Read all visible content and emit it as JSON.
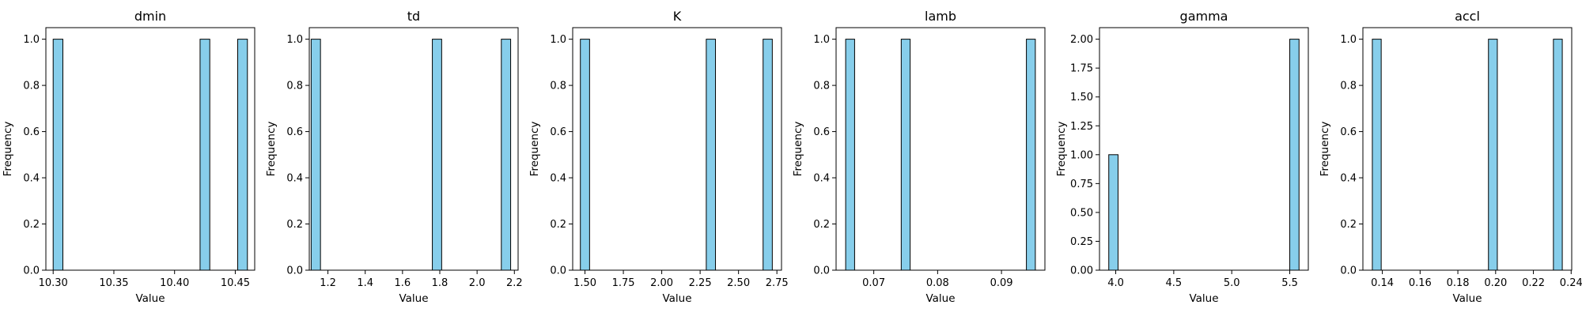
{
  "colors": {
    "bar_fill": "#87ceeb",
    "bar_edge": "#000000"
  },
  "chart_data": [
    {
      "type": "bar",
      "title": "dmin",
      "xlabel": "Value",
      "ylabel": "Frequency",
      "xlim": [
        10.294,
        10.466
      ],
      "ylim": [
        0,
        1.05
      ],
      "xticks": [
        "10.30",
        "10.35",
        "10.40",
        "10.45"
      ],
      "yticks": [
        "0.0",
        "0.2",
        "0.4",
        "0.6",
        "0.8",
        "1.0"
      ],
      "bins": [
        {
          "x0": 10.3,
          "x1": 10.308,
          "value": 1
        },
        {
          "x0": 10.421,
          "x1": 10.429,
          "value": 1
        },
        {
          "x0": 10.452,
          "x1": 10.46,
          "value": 1
        }
      ]
    },
    {
      "type": "bar",
      "title": "td",
      "xlabel": "Value",
      "ylabel": "Frequency",
      "xlim": [
        1.1,
        2.22
      ],
      "ylim": [
        0,
        1.05
      ],
      "xticks": [
        "1.2",
        "1.4",
        "1.6",
        "1.8",
        "2.0",
        "2.2"
      ],
      "yticks": [
        "0.0",
        "0.2",
        "0.4",
        "0.6",
        "0.8",
        "1.0"
      ],
      "bins": [
        {
          "x0": 1.11,
          "x1": 1.16,
          "value": 1
        },
        {
          "x0": 1.76,
          "x1": 1.81,
          "value": 1
        },
        {
          "x0": 2.13,
          "x1": 2.18,
          "value": 1
        }
      ]
    },
    {
      "type": "bar",
      "title": "K",
      "xlabel": "Value",
      "ylabel": "Frequency",
      "xlim": [
        1.42,
        2.78
      ],
      "ylim": [
        0,
        1.05
      ],
      "xticks": [
        "1.50",
        "1.75",
        "2.00",
        "2.25",
        "2.50",
        "2.75"
      ],
      "yticks": [
        "0.0",
        "0.2",
        "0.4",
        "0.6",
        "0.8",
        "1.0"
      ],
      "bins": [
        {
          "x0": 1.47,
          "x1": 1.53,
          "value": 1
        },
        {
          "x0": 2.29,
          "x1": 2.35,
          "value": 1
        },
        {
          "x0": 2.66,
          "x1": 2.72,
          "value": 1
        }
      ]
    },
    {
      "type": "bar",
      "title": "lamb",
      "xlabel": "Value",
      "ylabel": "Frequency",
      "xlim": [
        0.0641,
        0.0968
      ],
      "ylim": [
        0,
        1.05
      ],
      "xticks": [
        "0.07",
        "0.08",
        "0.09"
      ],
      "yticks": [
        "0.0",
        "0.2",
        "0.4",
        "0.6",
        "0.8",
        "1.0"
      ],
      "bins": [
        {
          "x0": 0.0656,
          "x1": 0.067,
          "value": 1
        },
        {
          "x0": 0.0743,
          "x1": 0.0757,
          "value": 1
        },
        {
          "x0": 0.0939,
          "x1": 0.0953,
          "value": 1
        }
      ]
    },
    {
      "type": "bar",
      "title": "gamma",
      "xlabel": "Value",
      "ylabel": "Frequency",
      "xlim": [
        3.86,
        5.66
      ],
      "ylim": [
        0,
        2.1
      ],
      "xticks": [
        "4.0",
        "4.5",
        "5.0",
        "5.5"
      ],
      "yticks": [
        "0.00",
        "0.25",
        "0.50",
        "0.75",
        "1.00",
        "1.25",
        "1.50",
        "1.75",
        "2.00"
      ],
      "bins": [
        {
          "x0": 3.94,
          "x1": 4.02,
          "value": 1
        },
        {
          "x0": 5.5,
          "x1": 5.58,
          "value": 2
        }
      ]
    },
    {
      "type": "bar",
      "title": "accl",
      "xlabel": "Value",
      "ylabel": "Frequency",
      "xlim": [
        0.1297,
        0.2403
      ],
      "ylim": [
        0,
        1.05
      ],
      "xticks": [
        "0.14",
        "0.16",
        "0.18",
        "0.20",
        "0.22",
        "0.24"
      ],
      "yticks": [
        "0.0",
        "0.2",
        "0.4",
        "0.6",
        "0.8",
        "1.0"
      ],
      "bins": [
        {
          "x0": 0.1347,
          "x1": 0.1394,
          "value": 1
        },
        {
          "x0": 0.1962,
          "x1": 0.2009,
          "value": 1
        },
        {
          "x0": 0.2306,
          "x1": 0.2353,
          "value": 1
        }
      ]
    }
  ]
}
